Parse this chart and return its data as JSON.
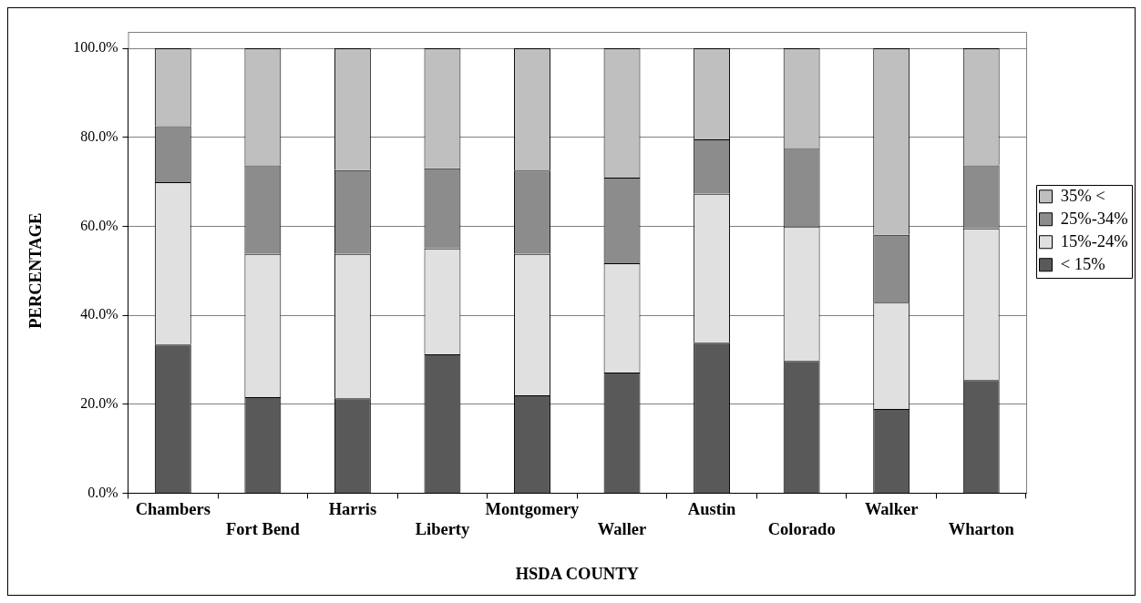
{
  "chart_data": {
    "type": "bar",
    "stacked": true,
    "xlabel": "HSDA COUNTY",
    "ylabel": "PERCENTAGE",
    "categories": [
      "Chambers",
      "Fort Bend",
      "Harris",
      "Liberty",
      "Montgomery",
      "Waller",
      "Austin",
      "Colorado",
      "Walker",
      "Wharton"
    ],
    "series": [
      {
        "name": "< 15%",
        "color": "#595959",
        "values": [
          33.4,
          21.6,
          21.3,
          31.2,
          22.0,
          27.1,
          33.8,
          29.7,
          18.9,
          25.4
        ]
      },
      {
        "name": "15%-24%",
        "color": "#e0e0e0",
        "values": [
          36.5,
          32.2,
          32.5,
          23.8,
          31.8,
          24.6,
          33.5,
          30.2,
          23.9,
          34.1
        ]
      },
      {
        "name": "25%-34%",
        "color": "#8c8c8c",
        "values": [
          12.6,
          19.9,
          18.8,
          18.0,
          18.7,
          19.2,
          12.2,
          17.7,
          15.3,
          14.2
        ]
      },
      {
        "name": "35% <",
        "color": "#bfbfbf",
        "values": [
          17.5,
          26.3,
          27.4,
          27.0,
          27.5,
          29.1,
          20.5,
          22.4,
          41.9,
          26.3
        ]
      }
    ],
    "ylim": [
      0,
      100
    ],
    "yticks": [
      {
        "value": 0,
        "label": "0.0%"
      },
      {
        "value": 20,
        "label": "20.0%"
      },
      {
        "value": 40,
        "label": "40.0%"
      },
      {
        "value": 60,
        "label": "60.0%"
      },
      {
        "value": 80,
        "label": "80.0%"
      },
      {
        "value": 100,
        "label": "100.0%"
      }
    ],
    "grid": "y",
    "legend": "right"
  }
}
